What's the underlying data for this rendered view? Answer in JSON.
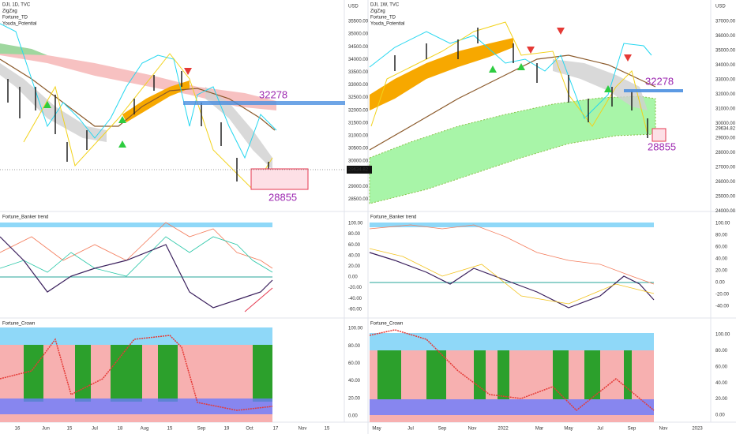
{
  "left": {
    "header": [
      "DJI, 1D, TVC",
      "ZigZag",
      "Fortune_TD",
      "Youda_Potential"
    ],
    "currency": "USD",
    "price_axis": [
      "35500.00",
      "35000.00",
      "34500.00",
      "34000.00",
      "33500.00",
      "33000.00",
      "32500.00",
      "32000.00",
      "31500.00",
      "31000.00",
      "30500.00",
      "30000.00",
      "29000.00",
      "28500.00"
    ],
    "last_price": "29634.82",
    "annotations": [
      "32278",
      "28855"
    ],
    "banker_title": "Fortune_Banker trend",
    "banker_axis": [
      "100.00",
      "80.00",
      "60.00",
      "40.00",
      "20.00",
      "0.00",
      "-20.00",
      "-40.00",
      "-60.00"
    ],
    "crown_title": "Fortune_Crown",
    "crown_axis": [
      "100.00",
      "80.00",
      "60.00",
      "40.00",
      "20.00",
      "0.00"
    ],
    "time_axis": [
      "16",
      "Jun",
      "15",
      "Jul",
      "18",
      "Aug",
      "15",
      "Sep",
      "19",
      "Oct",
      "17",
      "Nov",
      "15"
    ]
  },
  "right": {
    "header": [
      "DJI, 1W, TVC",
      "ZigZag",
      "Fortune_TD",
      "Youda_Potential"
    ],
    "currency": "USD",
    "price_axis": [
      "37000.00",
      "36000.00",
      "35000.00",
      "34000.00",
      "33000.00",
      "32000.00",
      "31000.00",
      "30000.00",
      "29000.00",
      "28000.00",
      "27000.00",
      "26000.00",
      "25000.00",
      "24000.00"
    ],
    "last_price": "29634.82",
    "annotations": [
      "32278",
      "28855"
    ],
    "banker_title": "Fortune_Banker trend",
    "banker_axis": [
      "100.00",
      "80.00",
      "60.00",
      "40.00",
      "20.00",
      "0.00",
      "-20.00",
      "-40.00"
    ],
    "crown_title": "Fortune_Crown",
    "crown_axis": [
      "100.00",
      "80.00",
      "60.00",
      "40.00",
      "20.00",
      "0.00"
    ],
    "time_axis": [
      "May",
      "Jul",
      "Sep",
      "Nov",
      "2022",
      "Mar",
      "May",
      "Jul",
      "Sep",
      "Nov",
      "2023"
    ]
  }
}
